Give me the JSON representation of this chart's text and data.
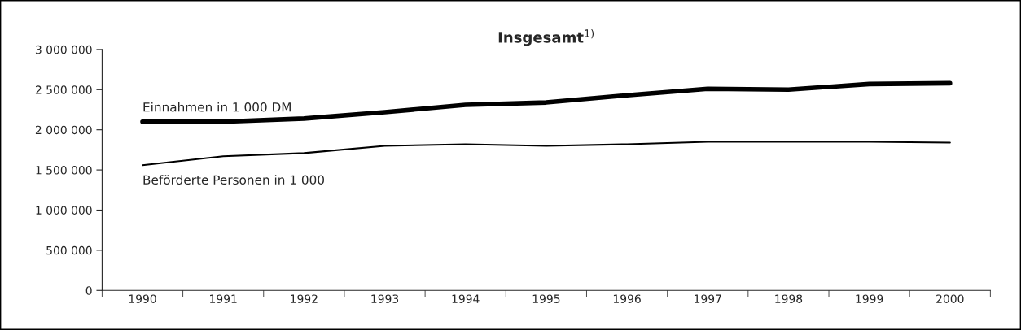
{
  "chart_data": {
    "type": "line",
    "title": "Insgesamt$^{1)}$",
    "categories": [
      "1990",
      "1991",
      "1992",
      "1993",
      "1994",
      "1995",
      "1996",
      "1997",
      "1998",
      "1999",
      "2000"
    ],
    "series": [
      {
        "name": "Einnahmen in 1 000 DM",
        "color": "#000000",
        "values": [
          2100000,
          2100000,
          2140000,
          2220000,
          2310000,
          2340000,
          2430000,
          2510000,
          2500000,
          2570000,
          2580000
        ]
      },
      {
        "name": "Beförderte Personen in 1 000",
        "color": "#000000",
        "values": [
          1560000,
          1670000,
          1710000,
          1800000,
          1820000,
          1800000,
          1820000,
          1850000,
          1850000,
          1850000,
          1840000
        ]
      }
    ],
    "ylim": [
      0,
      3000000
    ],
    "yticks": [
      {
        "value": 0,
        "label": "0"
      },
      {
        "value": 500000,
        "label": "500 000"
      },
      {
        "value": 1000000,
        "label": "1 000 000"
      },
      {
        "value": 1500000,
        "label": "1 500 000"
      },
      {
        "value": 2000000,
        "label": "2 000 000"
      },
      {
        "value": 2500000,
        "label": "2 500 000"
      },
      {
        "value": 3000000,
        "label": "3 000 000"
      }
    ],
    "grid": false,
    "legend": false,
    "marker": "none",
    "line_style": "solid"
  }
}
